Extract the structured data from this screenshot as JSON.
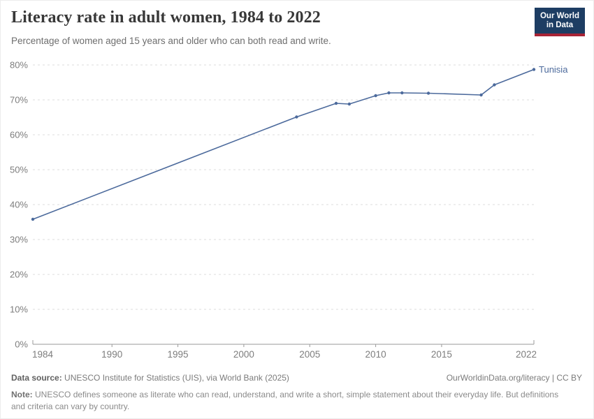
{
  "header": {
    "title": "Literacy rate in adult women, 1984 to 2022",
    "subtitle": "Percentage of women aged 15 years and older who can both read and write.",
    "logo": {
      "line1": "Our World",
      "line2": "in Data"
    }
  },
  "colors": {
    "line": "#4C6A9C",
    "logo_bg": "#1d3d63",
    "logo_stripe": "#a82335",
    "axis": "#9a9a9a",
    "grid": "#dcdcdc",
    "tick_label": "#7d7d7d"
  },
  "chart_data": {
    "type": "line",
    "title": "Literacy rate in adult women, 1984 to 2022",
    "entity": "Tunisia",
    "series": [
      {
        "name": "Tunisia",
        "color": "#4C6A9C",
        "points": [
          {
            "year": 1984,
            "value": 35.8
          },
          {
            "year": 2004,
            "value": 65.1
          },
          {
            "year": 2007,
            "value": 69.0
          },
          {
            "year": 2008,
            "value": 68.8
          },
          {
            "year": 2010,
            "value": 71.2
          },
          {
            "year": 2011,
            "value": 72.0
          },
          {
            "year": 2012,
            "value": 72.0
          },
          {
            "year": 2014,
            "value": 71.9
          },
          {
            "year": 2018,
            "value": 71.4
          },
          {
            "year": 2019,
            "value": 74.3
          },
          {
            "year": 2022,
            "value": 78.7
          }
        ]
      }
    ],
    "xlim": [
      1984,
      2022
    ],
    "ylim": [
      0,
      80
    ],
    "xticks": [
      1984,
      1990,
      1995,
      2000,
      2005,
      2010,
      2015,
      2022
    ],
    "yticks": [
      0,
      10,
      20,
      30,
      40,
      50,
      60,
      70,
      80
    ],
    "y_tick_suffix": "%",
    "grid": "horizontal-dashed",
    "legend": "end-of-line entity label"
  },
  "footer": {
    "data_source_label": "Data source:",
    "data_source_text": "UNESCO Institute for Statistics (UIS), via World Bank (2025)",
    "attribution": "OurWorldinData.org/literacy | CC BY",
    "note_label": "Note:",
    "note_text": "UNESCO defines someone as literate who can read, understand, and write a short, simple statement about their everyday life. But definitions and criteria can vary by country."
  }
}
